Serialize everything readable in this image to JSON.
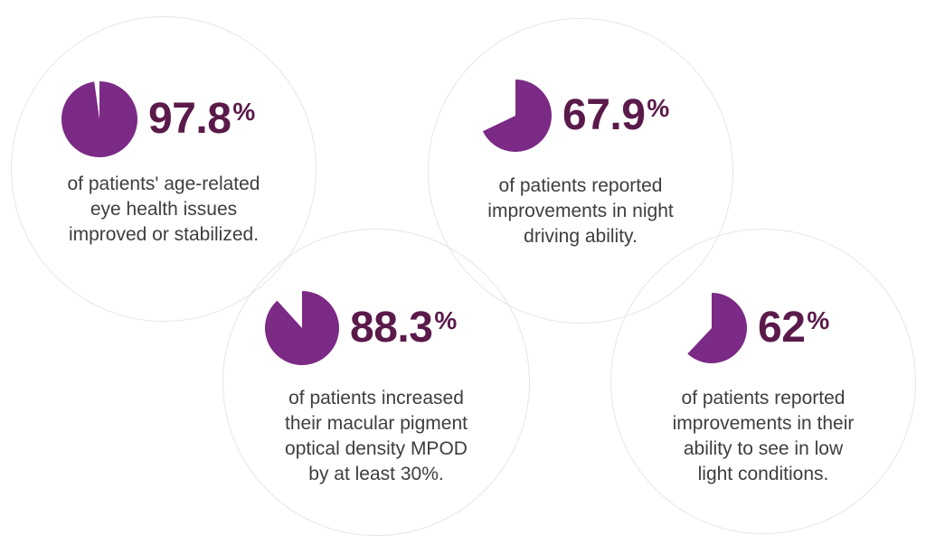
{
  "colors": {
    "accent": "#7b2a85",
    "number": "#5a1a4a",
    "text": "#3e3e3e",
    "ring": "#e6e6e6"
  },
  "chart_data": {
    "type": "pie",
    "stats": [
      {
        "value": 97.8,
        "number": "97.8",
        "unit": "%",
        "caption": "of patients' age-related\neye health issues\nimproved or stabilized."
      },
      {
        "value": 67.9,
        "number": "67.9",
        "unit": "%",
        "caption": "of patients reported\nimprovements in night\ndriving ability."
      },
      {
        "value": 88.3,
        "number": "88.3",
        "unit": "%",
        "caption": "of patients increased\ntheir macular pigment\noptical density MPOD\nby at least 30%."
      },
      {
        "value": 62,
        "number": "62",
        "unit": "%",
        "caption": "of patients reported\nimprovements in their\nability to see in low\nlight conditions."
      }
    ]
  }
}
